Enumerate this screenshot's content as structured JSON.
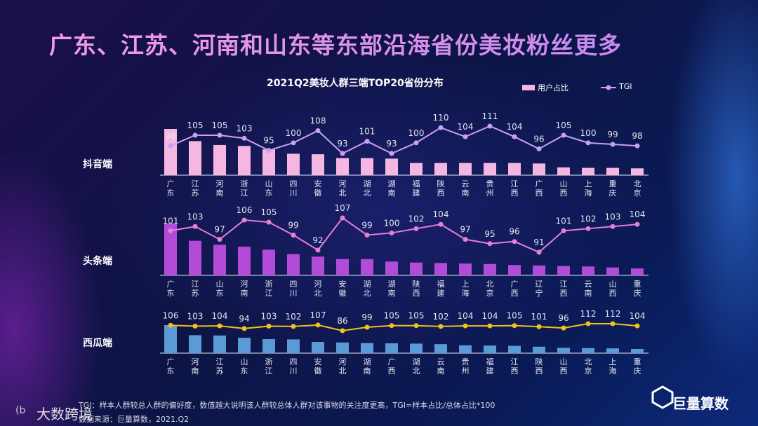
{
  "title": "广东、江苏、河南和山东等东部沿海省份美妆粉丝更多",
  "subtitle": "2021Q2美妆人群三端TOP20省份分布",
  "footnote": "TGI：样本人群较总人群的偏好度，数值越大说明该人群较总体人群对该事物的关注度更高，TGI=样本占比/总体占比*100",
  "source": "数据来源：巨量算数，2021.Q2",
  "logo_left": "大数跨境",
  "logo_right": "巨量算数",
  "chart_data": [
    {
      "type": "bar",
      "label": "抖音端",
      "categories": [
        "广东",
        "江苏",
        "河南",
        "浙江",
        "山东",
        "四川",
        "安徽",
        "河北",
        "湖北",
        "湖南",
        "福建",
        "陕西",
        "云南",
        "贵州",
        "江西",
        "广西",
        "山西",
        "上海",
        "重庆",
        "北京"
      ],
      "series": [
        {
          "name": "用户占比",
          "color": "#f5b6e2",
          "values": [
            9.5,
            7.0,
            6.2,
            6.0,
            5.3,
            4.4,
            4.3,
            3.5,
            3.5,
            3.4,
            2.5,
            2.5,
            2.5,
            2.5,
            2.5,
            2.4,
            1.6,
            1.5,
            1.5,
            1.4
          ]
        },
        {
          "name": "TGI",
          "type": "line",
          "color": "#c9a0f2",
          "values": [
            98,
            105,
            105,
            103,
            95,
            100,
            108,
            93,
            101,
            93,
            100,
            110,
            104,
            111,
            104,
            96,
            105,
            100,
            99,
            98
          ]
        }
      ]
    },
    {
      "type": "bar",
      "label": "头条端",
      "categories": [
        "广东",
        "江苏",
        "山东",
        "河南",
        "浙江",
        "四川",
        "河北",
        "安徽",
        "湖北",
        "湖南",
        "陕西",
        "福建",
        "上海",
        "北京",
        "广西",
        "辽宁",
        "江西",
        "云南",
        "山西",
        "重庆"
      ],
      "series": [
        {
          "color": "#b24bd8",
          "values": [
            10.5,
            7.0,
            6.2,
            5.8,
            5.2,
            4.3,
            3.8,
            3.3,
            3.3,
            2.8,
            2.6,
            2.5,
            2.4,
            2.3,
            2.1,
            2.0,
            1.9,
            1.8,
            1.6,
            1.4
          ]
        },
        {
          "type": "line",
          "color": "#e67fd6",
          "values": [
            101,
            103,
            97,
            106,
            105,
            99,
            92,
            107,
            99,
            100,
            102,
            104,
            97,
            95,
            96,
            91,
            101,
            102,
            103,
            104
          ]
        }
      ]
    },
    {
      "type": "bar",
      "label": "西瓜端",
      "categories": [
        "广东",
        "河南",
        "江苏",
        "山东",
        "浙江",
        "四川",
        "安徽",
        "河北",
        "湖南",
        "广西",
        "湖北",
        "云南",
        "贵州",
        "福建",
        "江西",
        "陕西",
        "山西",
        "北京",
        "上海",
        "重庆"
      ],
      "series": [
        {
          "color": "#5b9bd5",
          "values": [
            10.0,
            6.4,
            6.3,
            5.5,
            5.0,
            4.9,
            4.0,
            3.8,
            3.6,
            3.5,
            3.4,
            3.2,
            2.8,
            2.7,
            2.6,
            2.3,
            1.9,
            1.8,
            1.7,
            1.5
          ]
        },
        {
          "type": "line",
          "color": "#f2c21b",
          "values": [
            106,
            103,
            104,
            94,
            103,
            102,
            107,
            86,
            99,
            105,
            105,
            102,
            104,
            104,
            105,
            101,
            96,
            112,
            112,
            104
          ]
        }
      ]
    }
  ]
}
